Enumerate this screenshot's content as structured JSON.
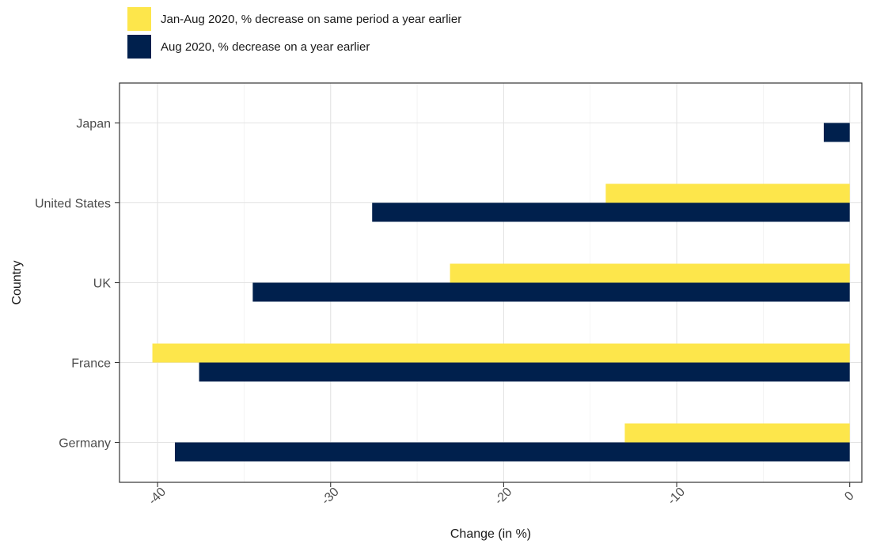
{
  "chart_data": {
    "type": "bar",
    "orientation": "horizontal",
    "categories": [
      "Japan",
      "United States",
      "UK",
      "France",
      "Germany"
    ],
    "series": [
      {
        "name": "Jan-Aug 2020, % decrease on same period a year earlier",
        "color": "#FDE64B",
        "values": [
          null,
          -14.1,
          -23.1,
          -40.3,
          -13.0
        ]
      },
      {
        "name": "Aug 2020, % decrease on a year earlier",
        "color": "#00204D",
        "values": [
          -1.5,
          -27.6,
          -34.5,
          -37.6,
          -39.0
        ]
      }
    ],
    "xlabel": "Change (in %)",
    "ylabel": "Country",
    "xlim": [
      -42.2,
      0.7
    ],
    "xticks": [
      -40,
      -30,
      -20,
      -10,
      0
    ],
    "xtick_labels": [
      "-40",
      "-30",
      "-20",
      "-10",
      "0"
    ],
    "grid": true,
    "legend_position": "top-left",
    "axis_label_rotation": "x tick labels rotated 45 degrees"
  }
}
